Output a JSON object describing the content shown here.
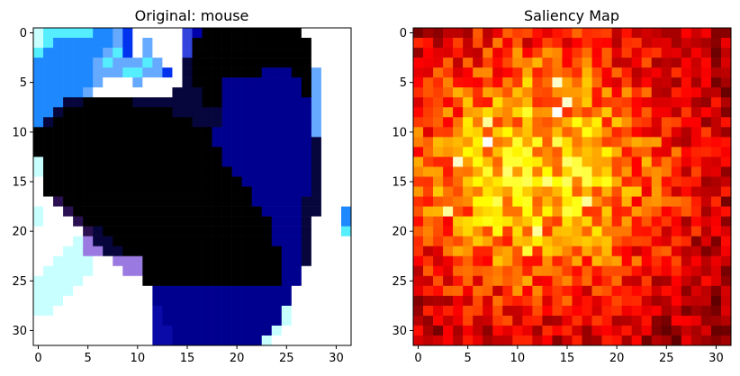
{
  "chart_data": [
    {
      "type": "heatmap",
      "title": "Original: mouse",
      "xlabel": "",
      "ylabel": "",
      "x_ticks": [
        0,
        5,
        10,
        15,
        20,
        25,
        30
      ],
      "y_ticks": [
        0,
        5,
        10,
        15,
        20,
        25,
        30
      ],
      "xlim": [
        -0.5,
        31.5
      ],
      "ylim": [
        31.5,
        -0.5
      ],
      "grid": false,
      "legend": "none",
      "grid_size": [
        32,
        32
      ],
      "rows": [
        "AcccccbbfdWWWWWwRKKKKKKKKKKWWWWW",
        "AcbbbbbbfdWfWWWwKKKKKKKKKKKKWWWW",
        "cbbbbbbfcdWfWWWwKKKKKKKKKKKKWWWW",
        "bbbbbbfcfffcfWWnKKKKKKKKKKKKWWWW",
        "bbbbbbfffccffdWnKKKKKKKNNNKKfWWW",
        "bbbbbbfWWWfWWWWnKKKNNNNNNNNKfWWW",
        "bbbbbfWWWWWWWWnnnKKNNNNNNNNKfWWW",
        "bbbnnKKKKKnnnnnnnKKNNNNNNNNNfWWW",
        "bbnKKKKKKKKKKKnnnnnNNNNNNNNNfWWW",
        "bnKKKKKKKKKKKKKKnnnNNNNNNNNNfWWW",
        "KKKKKKKKKKKKKKKKKKNNNNNNNNNNfWWW",
        "KKKKKKKKKKKKKKKKKKNNNNNNNNNNnWWW",
        "KKKKKKKKKKKKKKKKKKKNNNNNNNNNnWWW",
        "AKKKKKKKKKKKKKKKKKKNNNNNNNNNnWWW",
        "AKKKKKKKKKKKKKKKKKKKNNNNNNNNnWWW",
        "WKKKKKKKKKKKKKKKKKKKKNNNNNNNnWWW",
        "WKKKKKKKKKKKKKKKKKKKKKNNNNNNnWWW",
        "WWpKKKKKKKKKKKKKKKKKKKNNNNNnnWWW",
        "AWWpKKKKKKKKKKKKKKKKKKKNNNNnnWWb",
        "AWWWpKKKKKKKKKKKKKKKKKKKNNNnWWWb",
        "WWWWWpnKKKKKKKKKKKKKKKKKNNNnWWWc",
        "WWWWALnnKKKKKKKKKKKKKKKKNNNnWWWW",
        "WWWAALLnnKKKKKKKKKKKKKKKKNNnWWWW",
        "WWAAAAWWLLLKKKKKKKKKKKKKKNNnWWWW",
        "WAAAAAWWWLLKKKKKKKKKKKKKKNNWWWWW",
        "AAAAAWWWWWWKKKKKKKKKKKKKKNNWWWWW",
        "AAAAWWWWWWWWNNNNNNNNNNNNNNWWWWWW",
        "AAAWWWWWWWWWNNNNNNNNNNNNNNWWWWWW",
        "AAWWWWWWWWWWBNNNNNNNNNNNNAWWWWWW",
        "WWWWWWWWWWWWBNNNNNNNNNNNNAWWWWWW",
        "WWWWWWWWWWWWBBNNNNNNNNNNAWWWWWWW",
        "WWWWWWWWWWWWBBNNNNNNNNNAWWWWWWWW"
      ],
      "palette": {
        "W": "#ffffff",
        "A": "#c8ffff",
        "c": "#55eeff",
        "b": "#1e88ff",
        "f": "#66aaff",
        "d": "#0033ee",
        "w": "#3344dd",
        "R": "#0000aa",
        "K": "#000000",
        "k": "#0a0a14",
        "N": "#00008e",
        "B": "#0a0aa8",
        "n": "#06063c",
        "p": "#2a1050",
        "L": "#9a7ae0"
      }
    },
    {
      "type": "heatmap",
      "title": "Saliency Map",
      "xlabel": "",
      "ylabel": "",
      "x_ticks": [
        0,
        5,
        10,
        15,
        20,
        25,
        30
      ],
      "y_ticks": [
        0,
        5,
        10,
        15,
        20,
        25,
        30
      ],
      "xlim": [
        -0.5,
        31.5
      ],
      "ylim": [
        31.5,
        -0.5
      ],
      "grid": false,
      "legend": "none",
      "colormap": "hot",
      "grid_size": [
        32,
        32
      ],
      "peaks": [
        {
          "x": 14,
          "y": 5,
          "value": 0.95
        },
        {
          "x": 15,
          "y": 7,
          "value": 0.95
        },
        {
          "x": 14,
          "y": 8,
          "value": 1.0
        },
        {
          "x": 7,
          "y": 11,
          "value": 1.0
        },
        {
          "x": 7,
          "y": 9,
          "value": 0.9
        },
        {
          "x": 4,
          "y": 13,
          "value": 0.95
        },
        {
          "x": 3,
          "y": 18,
          "value": 0.9
        },
        {
          "x": 17,
          "y": 17,
          "value": 0.9
        },
        {
          "x": 12,
          "y": 20,
          "value": 0.9
        },
        {
          "x": 15,
          "y": 13,
          "value": 0.85
        },
        {
          "x": 9,
          "y": 15,
          "value": 0.8
        },
        {
          "x": 11,
          "y": 22,
          "value": 0.8
        }
      ]
    }
  ]
}
